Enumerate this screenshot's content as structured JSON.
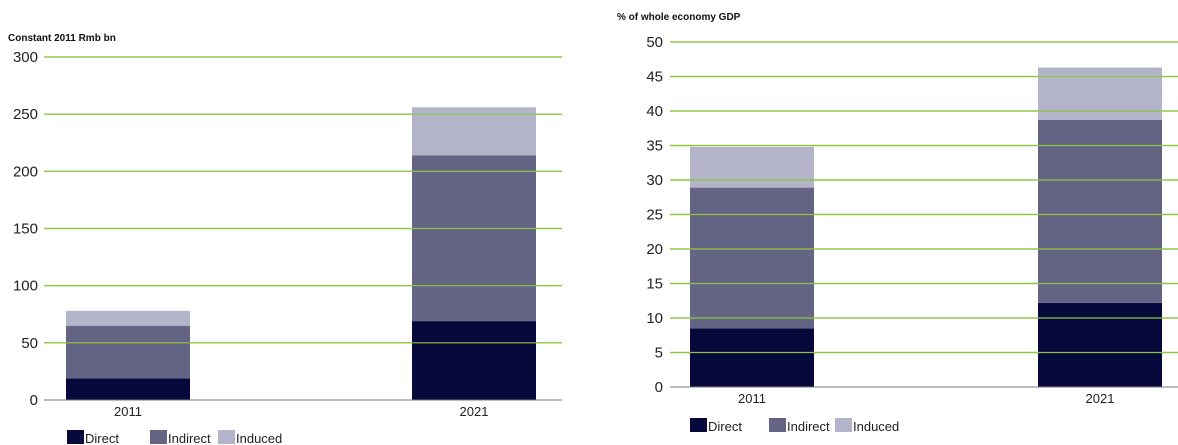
{
  "colors": {
    "direct": "#07083c",
    "indirect": "#646484",
    "induced": "#b3b3c9",
    "gridline": "#8cc63f",
    "axis": "#777777"
  },
  "chart_data": [
    {
      "type": "bar",
      "stacked": true,
      "title": "",
      "ylabel": "Constant 2011 Rmb bn",
      "xlabel": "",
      "categories": [
        "2011",
        "2021"
      ],
      "ylim": [
        0,
        300
      ],
      "yticks": [
        "0",
        "50",
        "100",
        "150",
        "200",
        "250",
        "300"
      ],
      "grid": true,
      "legend": "bottom-left",
      "series": [
        {
          "name": "Direct",
          "color_key": "direct",
          "values": [
            19,
            69
          ]
        },
        {
          "name": "Indirect",
          "color_key": "indirect",
          "values": [
            46,
            145
          ]
        },
        {
          "name": "Induced",
          "color_key": "induced",
          "values": [
            13,
            42
          ]
        }
      ]
    },
    {
      "type": "bar",
      "stacked": true,
      "title": "",
      "ylabel": "% of whole economy GDP",
      "xlabel": "",
      "categories": [
        "2011",
        "2021"
      ],
      "ylim": [
        0,
        50
      ],
      "yticks": [
        "0",
        "5",
        "10",
        "15",
        "20",
        "25",
        "30",
        "35",
        "40",
        "45",
        "50"
      ],
      "grid": true,
      "legend": "bottom-left",
      "series": [
        {
          "name": "Direct",
          "color_key": "direct",
          "values": [
            8.5,
            12.2
          ]
        },
        {
          "name": "Indirect",
          "color_key": "indirect",
          "values": [
            20.4,
            26.5
          ]
        },
        {
          "name": "Induced",
          "color_key": "induced",
          "values": [
            5.9,
            7.6
          ]
        }
      ]
    }
  ]
}
